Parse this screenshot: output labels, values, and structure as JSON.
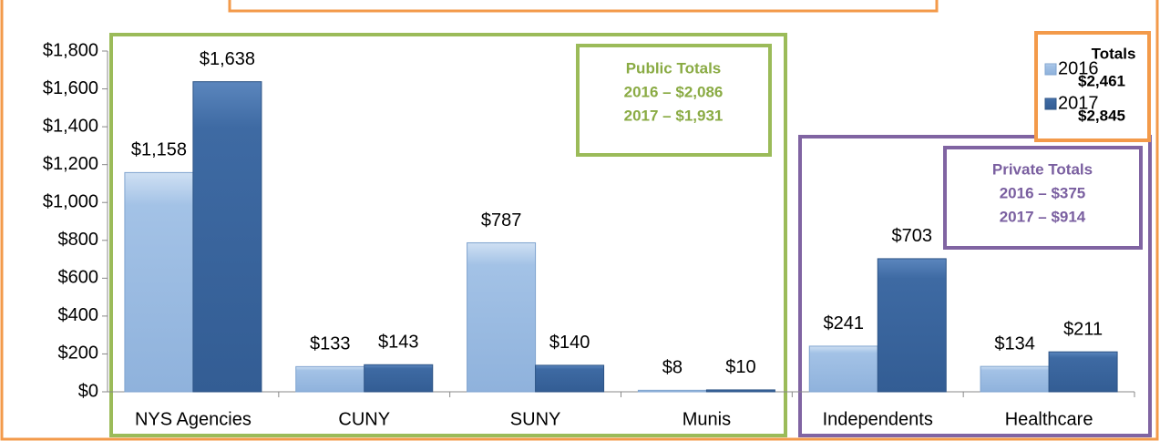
{
  "chart_data": {
    "type": "bar",
    "categories": [
      "NYS Agencies",
      "CUNY",
      "SUNY",
      "Munis",
      "Independents",
      "Healthcare"
    ],
    "series": [
      {
        "name": "2016",
        "color": "#a3c2e6",
        "values": [
          1158,
          133,
          787,
          8,
          241,
          134
        ],
        "value_labels": [
          "$1,158",
          "$133",
          "$787",
          "$8",
          "$241",
          "$134"
        ]
      },
      {
        "name": "2017",
        "color": "#3e6aa3",
        "values": [
          1638,
          143,
          140,
          10,
          703,
          211
        ],
        "value_labels": [
          "$1,638",
          "$143",
          "$140",
          "$10",
          "$703",
          "$211"
        ]
      }
    ],
    "ylim": [
      0,
      1800
    ],
    "yticks": [
      {
        "value": 0,
        "label": "$0"
      },
      {
        "value": 200,
        "label": "$200"
      },
      {
        "value": 400,
        "label": "$400"
      },
      {
        "value": 600,
        "label": "$600"
      },
      {
        "value": 800,
        "label": "$800"
      },
      {
        "value": 1000,
        "label": "$1,000"
      },
      {
        "value": 1200,
        "label": "$1,200"
      },
      {
        "value": 1400,
        "label": "$1,400"
      },
      {
        "value": 1600,
        "label": "$1,600"
      },
      {
        "value": 1800,
        "label": "$1,800"
      }
    ],
    "legend_title": "Totals",
    "legend_totals": [
      "$2,461",
      "$2,845"
    ],
    "public_totals": [
      "Public Totals",
      "2016 – $2,086",
      "2017 – $1,931"
    ],
    "private_totals": [
      "Private Totals",
      "2016 – $375",
      "2017 – $914"
    ]
  }
}
